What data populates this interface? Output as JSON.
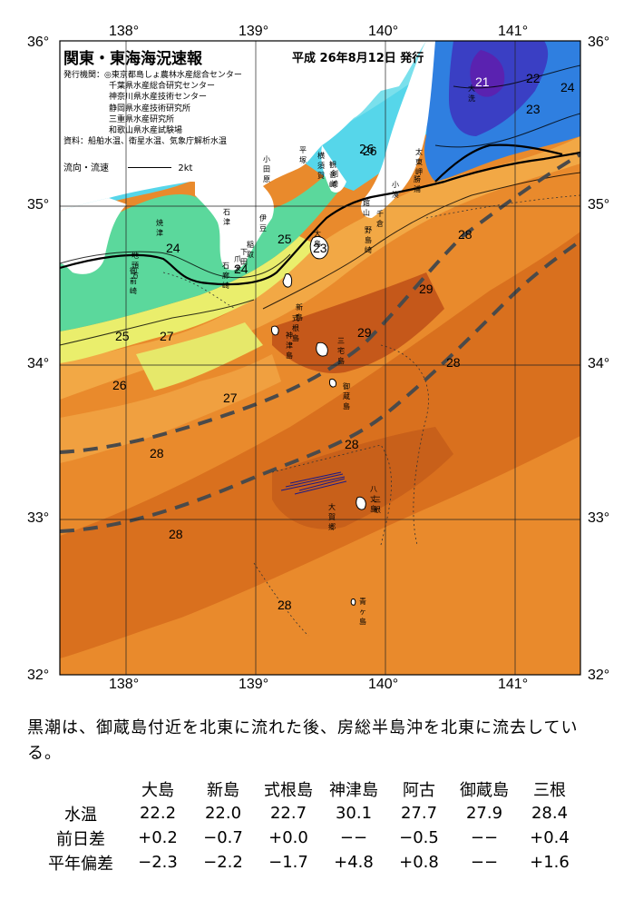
{
  "header": {
    "title": "関東・東海海況速報",
    "issue": "平成 26年8月12日 発行"
  },
  "legend": {
    "institutions_label": "発行機関：",
    "institutions": [
      "◎東京都島しょ農林水産総合センター",
      "千葉県水産総合研究センター",
      "神奈川県水産技術センター",
      "静岡県水産技術研究所",
      "三重県水産研究所",
      "和歌山県水産試験場"
    ],
    "sources": "資料：船舶水温、衛星水温、気象庁解析水温",
    "flow_label": "流向・流速",
    "flow_scale": "2kt"
  },
  "axes": {
    "lon_labels": [
      "138°",
      "139°",
      "140°",
      "141°"
    ],
    "lat_labels": [
      "36°",
      "35°",
      "34°",
      "33°",
      "32°"
    ]
  },
  "place_names": [
    "大洗",
    "26",
    "横須賀",
    "平塚",
    "小田原",
    "観音崎",
    "剣崎",
    "館山",
    "千倉",
    "野島崎",
    "太東岬",
    "勝浦",
    "小湊",
    "焼津",
    "石津",
    "伊豆",
    "稲取",
    "下田",
    "爪木",
    "石廊崎",
    "御前崎",
    "地頭方",
    "大島",
    "新島",
    "式根島",
    "神津島",
    "三宅島",
    "御蔵島",
    "八丈島",
    "三根",
    "大賀郷",
    "青ヶ島"
  ],
  "isotherm_labels": [
    "21",
    "22",
    "24",
    "23",
    "26",
    "25",
    "23",
    "24",
    "24",
    "25",
    "27",
    "26",
    "27",
    "28",
    "29",
    "29",
    "28",
    "28",
    "28",
    "28",
    "28",
    "28"
  ],
  "caption": "黒潮は、御蔵島付近を北東に流れた後、房総半島沖を北東に流去している。",
  "table": {
    "headers": [
      "",
      "大島",
      "新島",
      "式根島",
      "神津島",
      "阿古",
      "御蔵島",
      "三根"
    ],
    "rows": [
      {
        "label": "水温",
        "values": [
          "22.2",
          "22.0",
          "22.7",
          "30.1",
          "27.7",
          "27.9",
          "28.4"
        ]
      },
      {
        "label": "前日差",
        "values": [
          "+0.2",
          "−0.7",
          "+0.0",
          "−−",
          "−0.5",
          "−−",
          "+0.4"
        ]
      },
      {
        "label": "平年偏差",
        "values": [
          "−2.3",
          "−2.2",
          "−1.7",
          "+4.8",
          "+0.8",
          "−−",
          "+1.6"
        ]
      }
    ]
  },
  "colors": {
    "cold_blue": "#3a3fc4",
    "blue": "#2f7fe0",
    "cyan": "#54d6ea",
    "green": "#59d59a",
    "yellow": "#ecef6a",
    "orange_light": "#f6b44a",
    "orange": "#ea8a2a",
    "orange_dark": "#d86a1a",
    "brown": "#c25812"
  }
}
